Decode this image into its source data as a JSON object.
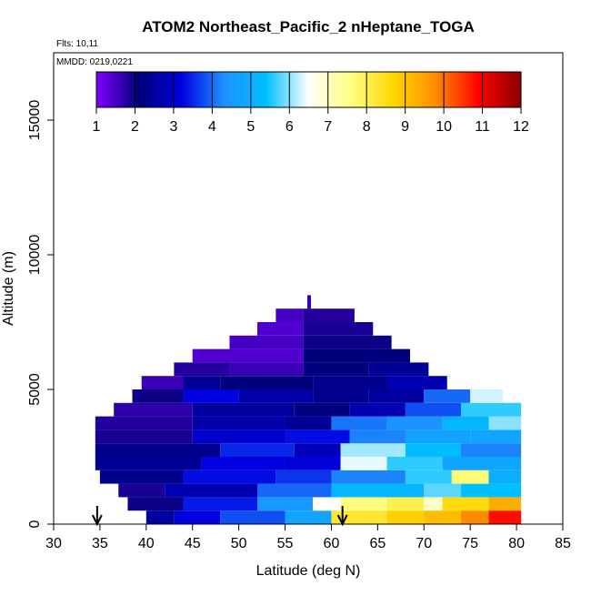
{
  "chart_data": {
    "type": "heatmap",
    "title": "ATOM2 Northeast_Pacific_2 nHeptane_TOGA",
    "flights_label": "Flts: 10,11",
    "dates_label": "MMDD: 0219,0221",
    "xlabel": "Latitude (deg N)",
    "ylabel": "Altitude (m)",
    "xlim": [
      30,
      85
    ],
    "ylim": [
      0,
      17500
    ],
    "x_ticks": [
      "30",
      "35",
      "40",
      "45",
      "50",
      "55",
      "60",
      "65",
      "70",
      "75",
      "80",
      "85"
    ],
    "y_ticks": [
      "0",
      "5000",
      "10000",
      "15000"
    ],
    "colorbar": {
      "min": 1,
      "max": 12,
      "tick_labels": [
        "1",
        "2",
        "3",
        "4",
        "5",
        "6",
        "7",
        "8",
        "9",
        "10",
        "11",
        "12"
      ],
      "colors": [
        "#7f00ff",
        "#00007a",
        "#0000e0",
        "#1e90ff",
        "#00bfff",
        "#ffffff",
        "#ffff80",
        "#ffd700",
        "#ff8c00",
        "#ff0000",
        "#8b0000"
      ]
    },
    "arrows_lat": [
      34.7,
      61.2
    ],
    "bands": [
      {
        "alt0": 0,
        "alt1": 500,
        "segments": [
          [
            40,
            43,
            2.5
          ],
          [
            43,
            48,
            3.2
          ],
          [
            48,
            55,
            3.8
          ],
          [
            55,
            60,
            4.8
          ],
          [
            60,
            66,
            8.3
          ],
          [
            66,
            70,
            8.8
          ],
          [
            70,
            74,
            9.1
          ],
          [
            74,
            77,
            9.8
          ],
          [
            77,
            80.5,
            10.8
          ]
        ]
      },
      {
        "alt0": 500,
        "alt1": 1000,
        "segments": [
          [
            38,
            44,
            2.0
          ],
          [
            44,
            52,
            3.4
          ],
          [
            52,
            58,
            4.5
          ],
          [
            58,
            61,
            6.5
          ],
          [
            61,
            66,
            7.6
          ],
          [
            66,
            70,
            8.0
          ],
          [
            70,
            72,
            7.0
          ],
          [
            72,
            77,
            8.6
          ],
          [
            77,
            80.5,
            9.3
          ]
        ]
      },
      {
        "alt0": 1000,
        "alt1": 1500,
        "segments": [
          [
            37,
            42,
            1.9
          ],
          [
            42,
            52,
            2.7
          ],
          [
            52,
            60,
            4.0
          ],
          [
            60,
            70,
            5.2
          ],
          [
            70,
            74,
            5.8
          ],
          [
            74,
            80.5,
            5.4
          ]
        ]
      },
      {
        "alt0": 1500,
        "alt1": 2000,
        "segments": [
          [
            35,
            44,
            2.3
          ],
          [
            44,
            54,
            3.3
          ],
          [
            54,
            60,
            3.6
          ],
          [
            60,
            68,
            4.2
          ],
          [
            68,
            73,
            5.6
          ],
          [
            73,
            77,
            7.7
          ],
          [
            77,
            80.5,
            5.0
          ]
        ]
      },
      {
        "alt0": 2000,
        "alt1": 2500,
        "segments": [
          [
            34.5,
            46,
            2.4
          ],
          [
            46,
            55,
            3.2
          ],
          [
            55,
            61,
            3.1
          ],
          [
            61,
            66,
            6.4
          ],
          [
            66,
            72,
            5.6
          ],
          [
            72,
            80.5,
            4.8
          ]
        ]
      },
      {
        "alt0": 2500,
        "alt1": 3000,
        "segments": [
          [
            34.5,
            48,
            2.3
          ],
          [
            48,
            56,
            3.5
          ],
          [
            56,
            61,
            2.8
          ],
          [
            61,
            68,
            6.1
          ],
          [
            68,
            74,
            5.3
          ],
          [
            74,
            80.5,
            4.2
          ]
        ]
      },
      {
        "alt0": 3000,
        "alt1": 3500,
        "segments": [
          [
            34.5,
            45,
            1.9
          ],
          [
            45,
            55,
            3.0
          ],
          [
            55,
            62,
            3.3
          ],
          [
            62,
            68,
            4.2
          ],
          [
            68,
            75,
            4.7
          ],
          [
            75,
            80.5,
            4.8
          ]
        ]
      },
      {
        "alt0": 3500,
        "alt1": 4000,
        "segments": [
          [
            34.5,
            45,
            1.8
          ],
          [
            45,
            55,
            2.6
          ],
          [
            55,
            60,
            2.4
          ],
          [
            60,
            66,
            4.1
          ],
          [
            66,
            72,
            4.4
          ],
          [
            72,
            77,
            5.2
          ],
          [
            77,
            80.5,
            6.0
          ]
        ]
      },
      {
        "alt0": 4000,
        "alt1": 4500,
        "segments": [
          [
            36.5,
            45,
            1.7
          ],
          [
            45,
            56,
            2.5
          ],
          [
            56,
            62,
            2.2
          ],
          [
            62,
            68,
            2.7
          ],
          [
            68,
            74,
            3.8
          ],
          [
            74,
            80.5,
            5.6
          ]
        ]
      },
      {
        "alt0": 4500,
        "alt1": 5000,
        "segments": [
          [
            38.5,
            44,
            2.0
          ],
          [
            44,
            50,
            3.2
          ],
          [
            50,
            58,
            2.6
          ],
          [
            58,
            64,
            2.3
          ],
          [
            64,
            70,
            2.5
          ],
          [
            70,
            75,
            4.0
          ],
          [
            75,
            78.5,
            6.3
          ]
        ]
      },
      {
        "alt0": 5000,
        "alt1": 5500,
        "segments": [
          [
            39.5,
            44,
            1.6
          ],
          [
            44,
            48,
            2.4
          ],
          [
            48,
            58,
            2.1
          ],
          [
            58,
            66,
            2.3
          ],
          [
            66,
            72.5,
            2.7
          ]
        ]
      },
      {
        "alt0": 5500,
        "alt1": 6000,
        "segments": [
          [
            43,
            49,
            1.8
          ],
          [
            49,
            57,
            1.6
          ],
          [
            57,
            64,
            2.1
          ],
          [
            64,
            70.5,
            2.4
          ]
        ]
      },
      {
        "alt0": 6000,
        "alt1": 6500,
        "segments": [
          [
            45,
            57,
            1.4
          ],
          [
            57,
            68.5,
            2.1
          ]
        ]
      },
      {
        "alt0": 6500,
        "alt1": 7000,
        "segments": [
          [
            49,
            57,
            1.5
          ],
          [
            57,
            66.5,
            2.0
          ]
        ]
      },
      {
        "alt0": 7000,
        "alt1": 7500,
        "segments": [
          [
            52,
            57,
            1.4
          ],
          [
            57,
            64.5,
            1.9
          ]
        ]
      },
      {
        "alt0": 7500,
        "alt1": 8000,
        "segments": [
          [
            54,
            57,
            1.5
          ],
          [
            57,
            62.5,
            1.8
          ]
        ]
      },
      {
        "alt0": 8000,
        "alt1": 8500,
        "segments": [
          [
            57.4,
            57.8,
            1.6
          ]
        ]
      }
    ]
  }
}
